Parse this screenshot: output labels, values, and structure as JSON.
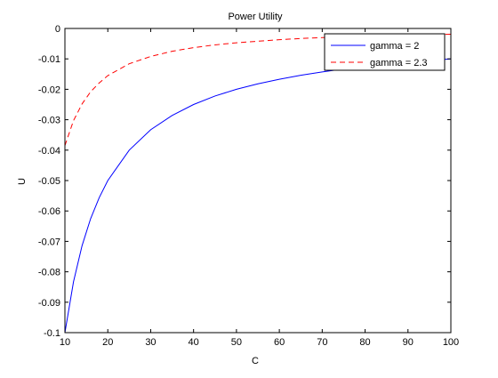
{
  "chart_data": {
    "type": "line",
    "title": "Power Utility",
    "xlabel": "C",
    "ylabel": "U",
    "xlim": [
      10,
      100
    ],
    "ylim": [
      -0.1,
      0
    ],
    "x_ticks": [
      10,
      20,
      30,
      40,
      50,
      60,
      70,
      80,
      90,
      100
    ],
    "y_ticks": [
      0,
      -0.01,
      -0.02,
      -0.03,
      -0.04,
      -0.05,
      -0.06,
      -0.07,
      -0.08,
      -0.09,
      -0.1
    ],
    "x_tick_labels": [
      "10",
      "20",
      "30",
      "40",
      "50",
      "60",
      "70",
      "80",
      "90",
      "100"
    ],
    "y_tick_labels": [
      "0",
      "-0.01",
      "-0.02",
      "-0.03",
      "-0.04",
      "-0.05",
      "-0.06",
      "-0.07",
      "-0.08",
      "-0.09",
      "-0.1"
    ],
    "grid": false,
    "legend_position": "top-right",
    "series": [
      {
        "name": "gamma = 2",
        "color": "#0000ff",
        "line_style": "solid",
        "x": [
          10,
          12,
          14,
          16,
          18,
          20,
          25,
          30,
          35,
          40,
          45,
          50,
          55,
          60,
          65,
          70,
          75,
          80,
          85,
          90,
          95,
          100
        ],
        "values": [
          -0.1,
          -0.0833,
          -0.0714,
          -0.0625,
          -0.0556,
          -0.05,
          -0.04,
          -0.0333,
          -0.0286,
          -0.025,
          -0.0222,
          -0.02,
          -0.0182,
          -0.0167,
          -0.0154,
          -0.0143,
          -0.0133,
          -0.0125,
          -0.0118,
          -0.0111,
          -0.0105,
          -0.01
        ]
      },
      {
        "name": "gamma = 2.3",
        "color": "#ff0000",
        "line_style": "dashed",
        "x": [
          10,
          12,
          14,
          16,
          18,
          20,
          25,
          30,
          35,
          40,
          45,
          50,
          55,
          60,
          65,
          70,
          75,
          80,
          85,
          90,
          95,
          100
        ],
        "values": [
          -0.0385,
          -0.0303,
          -0.0248,
          -0.0208,
          -0.0179,
          -0.0155,
          -0.0116,
          -0.0092,
          -0.0075,
          -0.0063,
          -0.0054,
          -0.0047,
          -0.0042,
          -0.0037,
          -0.0033,
          -0.003,
          -0.0027,
          -0.0025,
          -0.0023,
          -0.0021,
          -0.002,
          -0.0019
        ]
      }
    ]
  }
}
